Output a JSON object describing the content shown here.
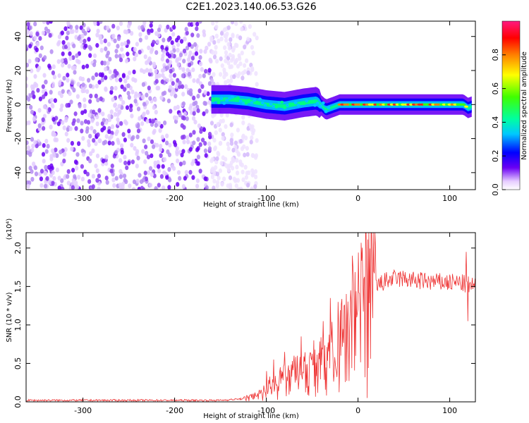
{
  "title": "C2E1.2023.140.06.53.G26",
  "chart_data": [
    {
      "type": "heatmap",
      "xlabel": "Height of straight line (km)",
      "ylabel": "Frequency (Hz)",
      "xlim": [
        -362,
        128
      ],
      "ylim": [
        -50,
        49
      ],
      "xticks": [
        -300,
        -200,
        -100,
        0,
        100
      ],
      "yticks": [
        -40,
        -20,
        0,
        20,
        40
      ],
      "colorbar": {
        "label": "Normalized spectral amplitude",
        "range": [
          0,
          1
        ],
        "ticks": [
          "0.0",
          "0.2",
          "0.4",
          "0.6",
          "0.8"
        ],
        "colors": [
          "#ffffff",
          "#6a00f4",
          "#0000ff",
          "#00c8ff",
          "#00ff80",
          "#40ff00",
          "#ffff00",
          "#ff8000",
          "#ff0000",
          "#ff1a80"
        ]
      },
      "signal_ridge": {
        "x": [
          -160,
          -140,
          -120,
          -100,
          -80,
          -60,
          -45,
          -35,
          -20,
          0,
          20,
          40,
          60,
          80,
          100,
          115,
          120,
          125
        ],
        "y": [
          3,
          3,
          2,
          0,
          -1,
          1,
          2,
          -3,
          0,
          0,
          0,
          0,
          0,
          0,
          0,
          0,
          -2,
          -1
        ]
      },
      "noise_region": [
        -362,
        -120
      ]
    },
    {
      "type": "line",
      "xlabel": "Height of straight line (km)",
      "ylabel": "SNR (10 * v/v)",
      "yscale_note": "(x10⁴)",
      "xlim": [
        -362,
        128
      ],
      "ylim": [
        0,
        2.2
      ],
      "xticks": [
        -300,
        -200,
        -100,
        0,
        100
      ],
      "yticks": [
        "0.0",
        "0.5",
        "1.0",
        "1.5",
        "2.0"
      ],
      "color": "#ee3333",
      "trend": {
        "x": [
          -362,
          -250,
          -150,
          -125,
          -110,
          -100,
          -90,
          -80,
          -70,
          -60,
          -50,
          -40,
          -30,
          -20,
          -10,
          0,
          5,
          10,
          20,
          30,
          40,
          50,
          60,
          80,
          100,
          110,
          120,
          128
        ],
        "y": [
          0.02,
          0.02,
          0.02,
          0.04,
          0.08,
          0.15,
          0.22,
          0.28,
          0.3,
          0.35,
          0.38,
          0.45,
          0.55,
          0.7,
          0.85,
          1.05,
          1.2,
          1.35,
          1.5,
          1.57,
          1.6,
          1.6,
          1.58,
          1.56,
          1.55,
          1.55,
          1.52,
          1.5
        ]
      },
      "spikes": {
        "x": [
          -100,
          -92,
          -85,
          -80,
          -70,
          -62,
          -48,
          -38,
          -30,
          -22,
          -15,
          -8,
          -6,
          0,
          5,
          9,
          10,
          118,
          120
        ],
        "y": [
          0.4,
          0.55,
          0.45,
          0.65,
          0.6,
          0.85,
          0.8,
          1.05,
          1.35,
          1.3,
          1.25,
          1.45,
          1.9,
          1.2,
          1.6,
          2.2,
          0.05,
          1.95,
          1.05
        ]
      }
    }
  ]
}
